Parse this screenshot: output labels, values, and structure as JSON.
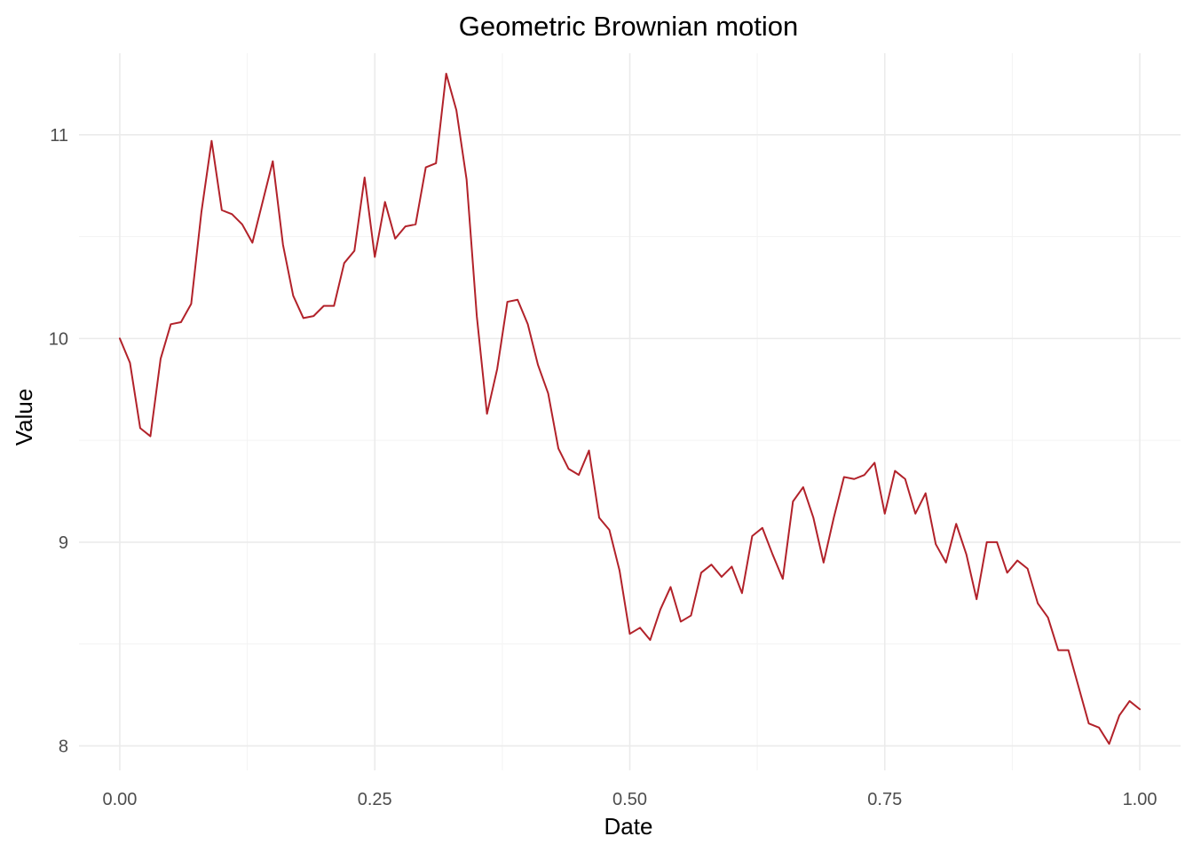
{
  "chart_data": {
    "type": "line",
    "title": "Geometric Brownian motion",
    "xlabel": "Date",
    "ylabel": "Value",
    "xlim": [
      -0.04,
      1.04
    ],
    "ylim": [
      7.88,
      11.4
    ],
    "x_ticks": [
      0.0,
      0.25,
      0.5,
      0.75,
      1.0
    ],
    "x_tick_labels": [
      "0.00",
      "0.25",
      "0.50",
      "0.75",
      "1.00"
    ],
    "x_minor_ticks": [
      0.125,
      0.375,
      0.625,
      0.875
    ],
    "y_ticks": [
      8,
      9,
      10,
      11
    ],
    "y_tick_labels": [
      "8",
      "9",
      "10",
      "11"
    ],
    "y_minor_ticks": [
      8.5,
      9.5,
      10.5
    ],
    "grid": true,
    "legend": "none",
    "line_color": "#B2222A",
    "series": [
      {
        "x": [
          0.0,
          0.01,
          0.02,
          0.03,
          0.04,
          0.05,
          0.06,
          0.07,
          0.08,
          0.09,
          0.1,
          0.11,
          0.12,
          0.13,
          0.14,
          0.15,
          0.16,
          0.17,
          0.18,
          0.19,
          0.2,
          0.21,
          0.22,
          0.23,
          0.24,
          0.25,
          0.26,
          0.27,
          0.28,
          0.29,
          0.3,
          0.31,
          0.32,
          0.33,
          0.34,
          0.35,
          0.36,
          0.37,
          0.38,
          0.39,
          0.4,
          0.41,
          0.42,
          0.43,
          0.44,
          0.45,
          0.46,
          0.47,
          0.48,
          0.49,
          0.5,
          0.51,
          0.52,
          0.53,
          0.54,
          0.55,
          0.56,
          0.57,
          0.58,
          0.59,
          0.6,
          0.61,
          0.62,
          0.63,
          0.64,
          0.65,
          0.66,
          0.67,
          0.68,
          0.69,
          0.7,
          0.71,
          0.72,
          0.73,
          0.74,
          0.75,
          0.76,
          0.77,
          0.78,
          0.79,
          0.8,
          0.81,
          0.82,
          0.83,
          0.84,
          0.85,
          0.86,
          0.87,
          0.88,
          0.89,
          0.9,
          0.91,
          0.92,
          0.93,
          0.94,
          0.95,
          0.96,
          0.97,
          0.98,
          0.99,
          1.0
        ],
        "values": [
          10.0,
          9.88,
          9.56,
          9.52,
          9.9,
          10.07,
          10.08,
          10.17,
          10.62,
          10.97,
          10.63,
          10.61,
          10.56,
          10.47,
          10.67,
          10.87,
          10.46,
          10.21,
          10.1,
          10.11,
          10.16,
          10.16,
          10.37,
          10.43,
          10.79,
          10.4,
          10.67,
          10.49,
          10.55,
          10.56,
          10.84,
          10.86,
          11.3,
          11.12,
          10.78,
          10.11,
          9.63,
          9.85,
          10.18,
          10.19,
          10.07,
          9.87,
          9.73,
          9.46,
          9.36,
          9.33,
          9.45,
          9.12,
          9.06,
          8.86,
          8.55,
          8.58,
          8.52,
          8.67,
          8.78,
          8.61,
          8.64,
          8.85,
          8.89,
          8.83,
          8.88,
          8.75,
          9.03,
          9.07,
          8.94,
          8.82,
          9.2,
          9.27,
          9.12,
          8.9,
          9.12,
          9.32,
          9.31,
          9.33,
          9.39,
          9.14,
          9.35,
          9.31,
          9.14,
          9.24,
          8.99,
          8.9,
          9.09,
          8.94,
          8.72,
          9.0,
          9.0,
          8.85,
          8.91,
          8.87,
          8.7,
          8.63,
          8.47,
          8.47,
          8.29,
          8.11,
          8.09,
          8.01,
          8.15,
          8.22,
          8.18
        ]
      }
    ]
  }
}
